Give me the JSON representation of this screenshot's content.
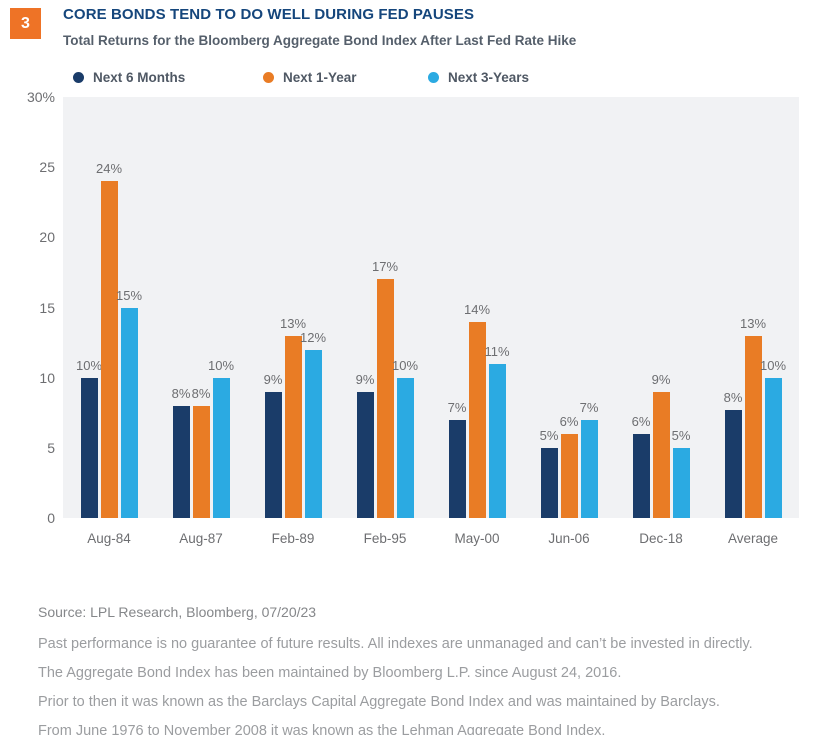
{
  "figure_number": "3",
  "header": {
    "title": "CORE BONDS TEND TO DO WELL DURING FED PAUSES",
    "subtitle": "Total Returns for the Bloomberg Aggregate Bond Index After Last Fed Rate Hike"
  },
  "colors": {
    "badge_orange": "#EE7326",
    "title_navy": "#15467C",
    "subtitle_gray": "#555F6B",
    "label_gray": "#6D6E71",
    "plot_background": "#F1F2F4",
    "series_navy": "#1A3C69",
    "series_orange": "#E97C25",
    "series_blue": "#2BAAE2"
  },
  "chart_data": {
    "type": "bar",
    "title": "Total Returns for the Bloomberg Aggregate Bond Index After Last Fed Rate Hike",
    "categories": [
      "Aug-84",
      "Aug-87",
      "Feb-89",
      "Feb-95",
      "May-00",
      "Jun-06",
      "Dec-18",
      "Average"
    ],
    "series": [
      {
        "name": "Next 6 Months",
        "color": "#1A3C69",
        "values": [
          10,
          8,
          9,
          9,
          7,
          5,
          6,
          7.7
        ],
        "labels": [
          "10%",
          "8%",
          "9%",
          "9%",
          "7%",
          "5%",
          "6%",
          "8%"
        ]
      },
      {
        "name": "Next 1-Year",
        "color": "#E97C25",
        "values": [
          24,
          8,
          13,
          17,
          14,
          6,
          9,
          13
        ],
        "labels": [
          "24%",
          "8%",
          "13%",
          "17%",
          "14%",
          "6%",
          "9%",
          "13%"
        ]
      },
      {
        "name": "Next 3-Years",
        "color": "#2BAAE2",
        "values": [
          15,
          10,
          12,
          10,
          11,
          7,
          5,
          10
        ],
        "labels": [
          "15%",
          "10%",
          "12%",
          "10%",
          "11%",
          "7%",
          "5%",
          "10%"
        ]
      }
    ],
    "xlabel": "",
    "ylabel": "",
    "ylim": [
      0,
      30
    ],
    "yticks": [
      {
        "label": "30%",
        "value": 30
      },
      {
        "label": "25",
        "value": 25
      },
      {
        "label": "20",
        "value": 20
      },
      {
        "label": "15",
        "value": 15
      },
      {
        "label": "10",
        "value": 10
      },
      {
        "label": "5",
        "value": 5
      },
      {
        "label": "0",
        "value": 0
      }
    ],
    "grid": false,
    "legend_position": "top"
  },
  "footer": {
    "source": "Source: LPL Research, Bloomberg, 07/20/23",
    "disclaimers": [
      "Past performance is no guarantee of future results. All indexes are unmanaged and can’t be invested in directly.",
      "The Aggregate Bond Index has been maintained by Bloomberg L.P. since August 24, 2016.",
      "Prior to then it was known as the Barclays Capital Aggregate Bond Index and was maintained by Barclays.",
      "From June 1976 to November 2008 it was known as the Lehman Aggregate Bond Index."
    ]
  }
}
